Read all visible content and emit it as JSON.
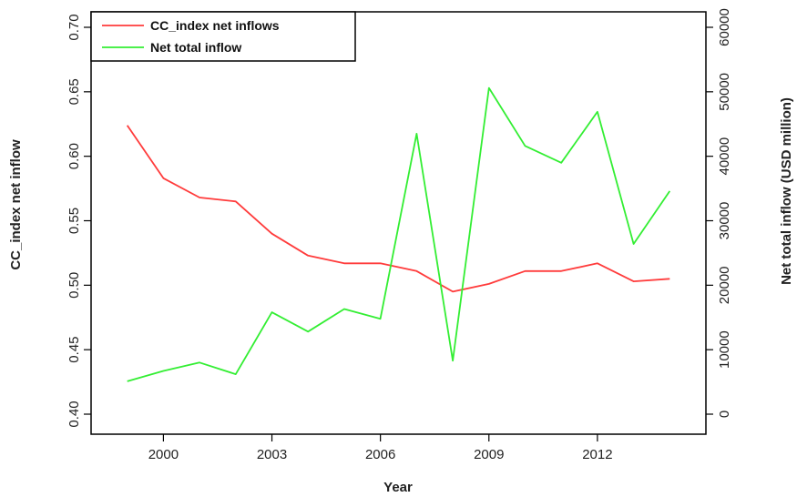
{
  "chart_data": {
    "type": "line",
    "xlabel": "Year",
    "ylabel_left": "CC_index net inflow",
    "ylabel_right": "Net total inflow (USD million)",
    "x": [
      1999,
      2000,
      2001,
      2002,
      2003,
      2004,
      2005,
      2006,
      2007,
      2008,
      2009,
      2010,
      2011,
      2012,
      2013,
      2014
    ],
    "x_ticks": [
      2000,
      2003,
      2006,
      2009,
      2012
    ],
    "ylim_left": [
      0.4,
      0.7
    ],
    "y_ticks_left": [
      "0.40",
      "0.45",
      "0.50",
      "0.55",
      "0.60",
      "0.65",
      "0.70"
    ],
    "ylim_right": [
      0,
      60000
    ],
    "y_ticks_right": [
      "0",
      "10000",
      "20000",
      "30000",
      "40000",
      "50000",
      "60000"
    ],
    "legend_position": "top-left",
    "series": [
      {
        "name": "CC_index net inflows",
        "axis": "left",
        "color": "#ff3b3b",
        "values": [
          0.624,
          0.583,
          0.568,
          0.565,
          0.54,
          0.523,
          0.517,
          0.517,
          0.511,
          0.495,
          0.501,
          0.511,
          0.511,
          0.517,
          0.503,
          0.505
        ]
      },
      {
        "name": "Net total inflow",
        "axis": "right",
        "color": "#33ee33",
        "values": [
          5100,
          6700,
          8000,
          6200,
          15800,
          12800,
          16300,
          14800,
          43500,
          8300,
          50600,
          41600,
          39000,
          46900,
          26400,
          34600
        ]
      }
    ]
  }
}
